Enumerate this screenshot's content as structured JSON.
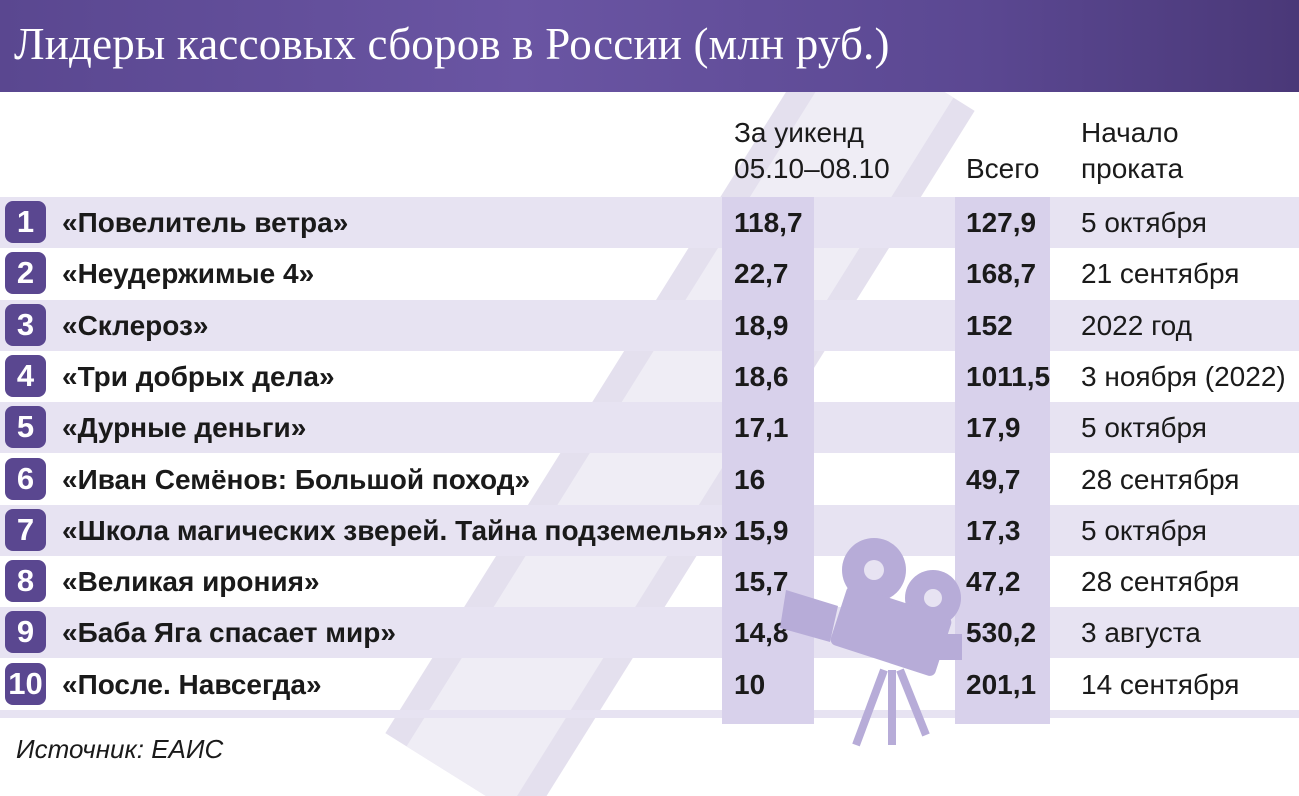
{
  "title": "Лидеры кассовых сборов в России (млн руб.)",
  "colors": {
    "header": "#5a4790",
    "band": "#e7e3f2",
    "column_shade": "#d8d1eb",
    "badge": "#5a4790"
  },
  "columns": {
    "weekend_line1": "За уикенд",
    "weekend_line2": "05.10–08.10",
    "total": "Всего",
    "start_line1": "Начало",
    "start_line2": "проката"
  },
  "source": "Источник: ЕАИС",
  "decor_icons": [
    "film-strip-icon",
    "movie-camera-icon"
  ],
  "chart_data": {
    "type": "table",
    "title": "Лидеры кассовых сборов в России (млн руб.)",
    "headers": [
      "",
      "",
      "За уикенд 05.10–08.10",
      "Всего",
      "Начало проката"
    ],
    "rows": [
      {
        "rank": "1",
        "film": "«Повелитель ветра»",
        "weekend": "118,7",
        "total": "127,9",
        "start": "5 октября"
      },
      {
        "rank": "2",
        "film": "«Неудержимые 4»",
        "weekend": "22,7",
        "total": "168,7",
        "start": "21 сентября"
      },
      {
        "rank": "3",
        "film": "«Склероз»",
        "weekend": "18,9",
        "total": "152",
        "start": "2022 год"
      },
      {
        "rank": "4",
        "film": "«Три добрых дела»",
        "weekend": "18,6",
        "total": "1011,5",
        "start": "3 ноября (2022)"
      },
      {
        "rank": "5",
        "film": "«Дурные деньги»",
        "weekend": "17,1",
        "total": "17,9",
        "start": "5 октября"
      },
      {
        "rank": "6",
        "film": "«Иван Семёнов: Большой поход»",
        "weekend": "16",
        "total": "49,7",
        "start": "28 сентября"
      },
      {
        "rank": "7",
        "film": "«Школа магических зверей. Тайна подземелья»",
        "weekend": "15,9",
        "total": "17,3",
        "start": "5 октября"
      },
      {
        "rank": "8",
        "film": "«Великая ирония»",
        "weekend": "15,7",
        "total": "47,2",
        "start": "28 сентября"
      },
      {
        "rank": "9",
        "film": "«Баба Яга спасает мир»",
        "weekend": "14,8",
        "total": "530,2",
        "start": "3 августа"
      },
      {
        "rank": "10",
        "film": "«После. Навсегда»",
        "weekend": "10",
        "total": "201,1",
        "start": "14 сентября"
      }
    ]
  }
}
